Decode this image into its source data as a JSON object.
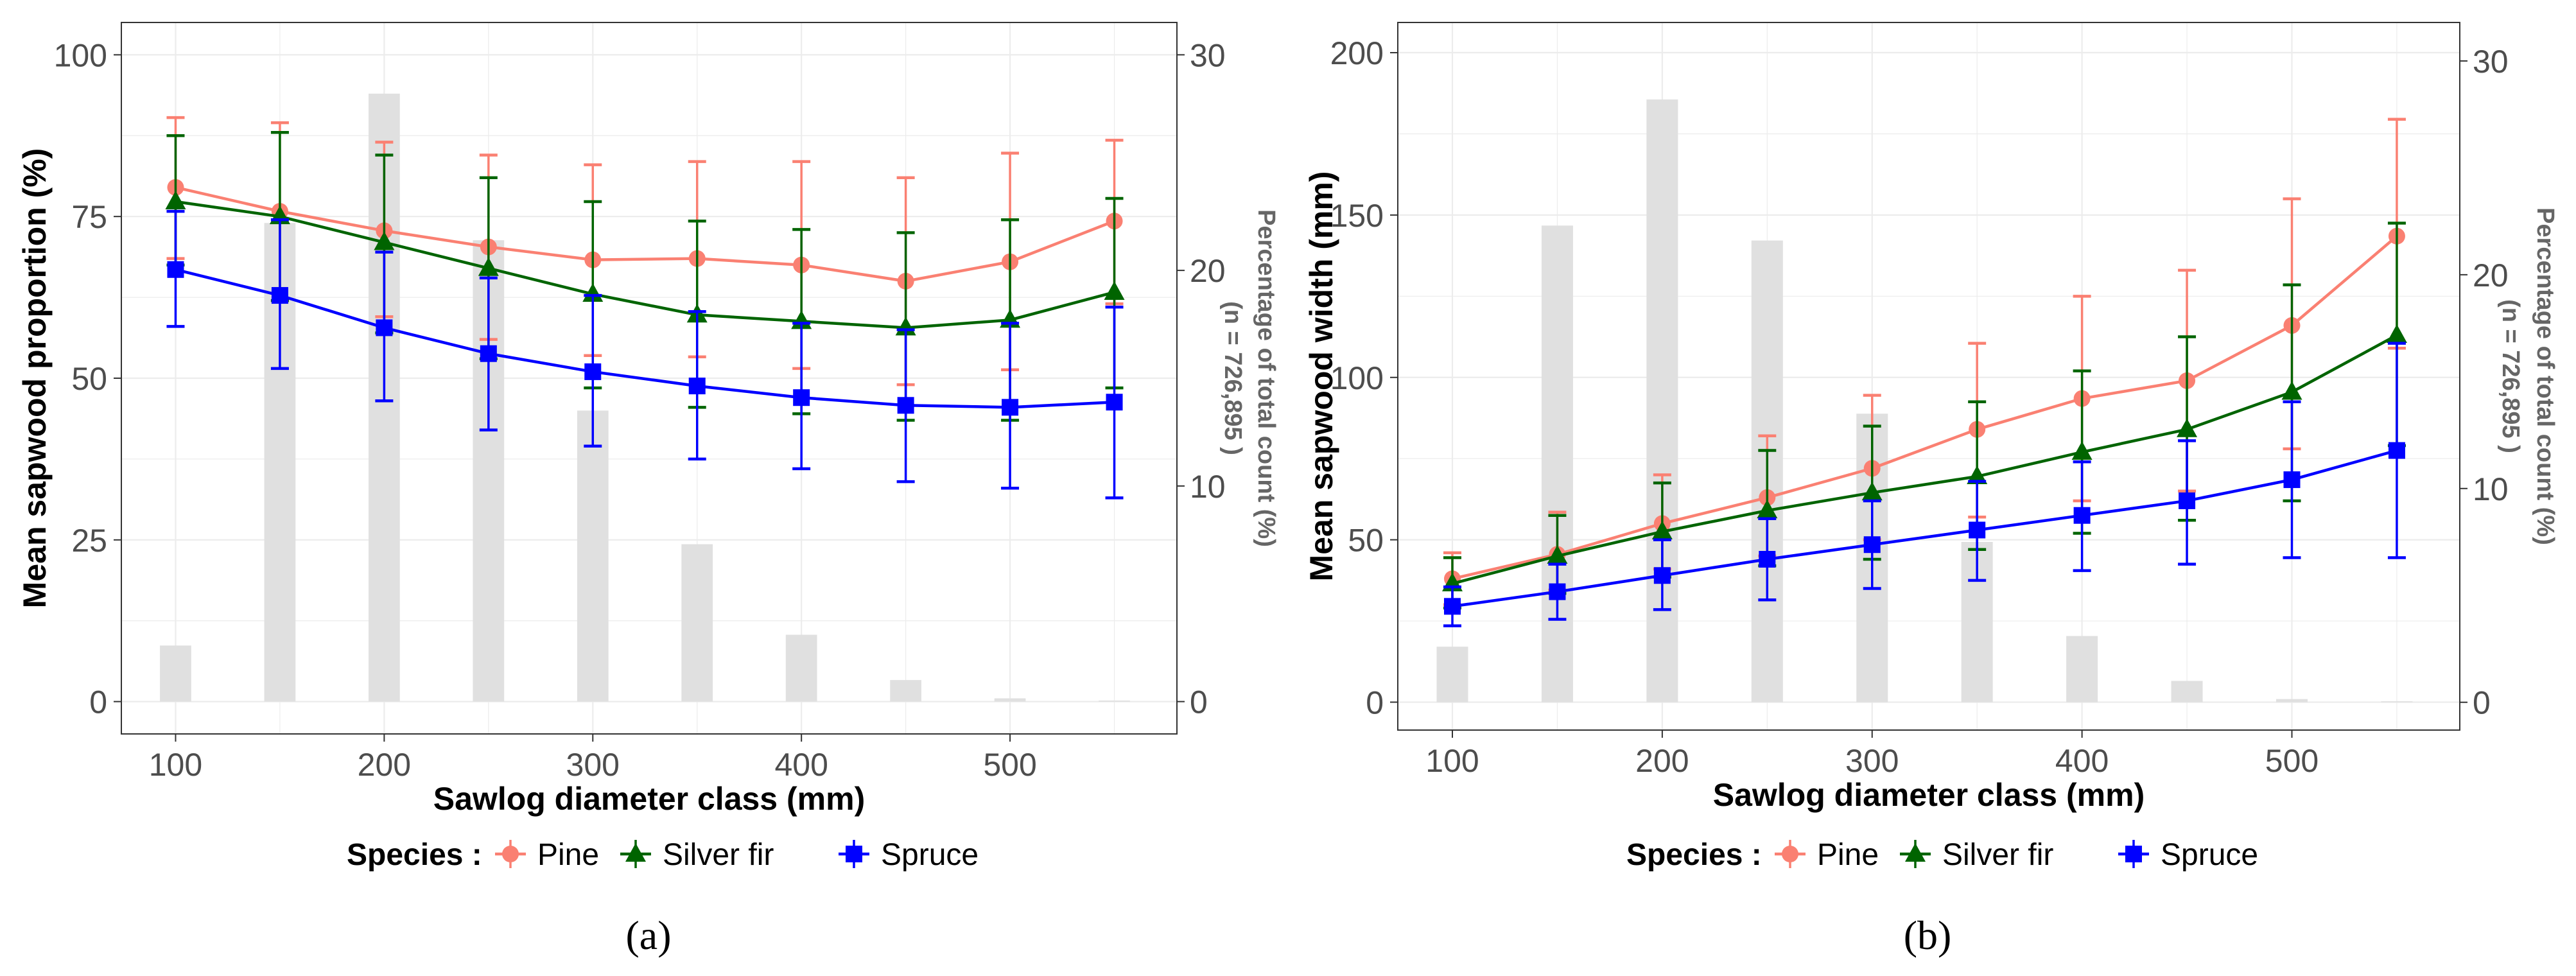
{
  "colors": {
    "pine": "#fa8072",
    "silver_fir": "#006400",
    "spruce": "#0000ff",
    "bars": "#e0e0e0",
    "grid": "#ececec",
    "axis_text_left": "#4d4d4d",
    "axis_text_right": "#666666"
  },
  "legend": {
    "title": "Species :",
    "items": [
      {
        "label": "Pine",
        "color": "#fa8072",
        "marker": "circle"
      },
      {
        "label": "Silver fir",
        "color": "#006400",
        "marker": "triangle"
      },
      {
        "label": "Spruce",
        "color": "#0000ff",
        "marker": "square"
      }
    ]
  },
  "chart_data": [
    {
      "panel_label": "(a)",
      "type": "line",
      "xlabel": "Sawlog diameter class (mm)",
      "ylabel": "Mean sapwood proportion (%)",
      "y2label": "Percentage of total count (%)",
      "y2sublabel": "(n = 726,895 )",
      "x": [
        100,
        150,
        200,
        250,
        300,
        350,
        400,
        450,
        500,
        550
      ],
      "xlim": [
        74,
        580
      ],
      "ylim": [
        -5,
        105
      ],
      "y2lim": [
        -1.5,
        31.5
      ],
      "xticks": [
        100,
        200,
        300,
        400,
        500
      ],
      "yticks": [
        0,
        25,
        50,
        75,
        100
      ],
      "y2ticks": [
        0,
        10,
        20,
        30
      ],
      "bars": [
        2.6,
        22.2,
        28.2,
        21.4,
        13.5,
        7.3,
        3.1,
        1.0,
        0.15,
        0.05
      ],
      "series": [
        {
          "name": "Pine",
          "values": [
            79.5,
            75.8,
            72.8,
            70.3,
            68.3,
            68.5,
            67.5,
            65.0,
            68.0,
            74.3
          ],
          "err_low": [
            68.5,
            62.0,
            59.5,
            56.0,
            53.5,
            53.3,
            51.5,
            49.0,
            51.3,
            61.5
          ],
          "err_high": [
            90.3,
            89.5,
            86.5,
            84.5,
            83.0,
            83.5,
            83.5,
            81.0,
            84.8,
            86.8
          ]
        },
        {
          "name": "Silver fir",
          "values": [
            77.3,
            75.0,
            71.0,
            67.0,
            63.0,
            59.8,
            58.8,
            57.8,
            59.0,
            63.3
          ],
          "err_low": [
            67.5,
            62.0,
            57.0,
            53.0,
            48.5,
            45.5,
            44.5,
            43.5,
            43.5,
            48.5
          ],
          "err_high": [
            87.5,
            88.0,
            84.5,
            81.0,
            77.3,
            74.3,
            73.0,
            72.5,
            74.5,
            77.8
          ]
        },
        {
          "name": "Spruce",
          "values": [
            66.8,
            62.8,
            57.8,
            53.8,
            51.0,
            48.8,
            47.0,
            45.8,
            45.5,
            46.3
          ],
          "err_low": [
            58.0,
            51.5,
            46.5,
            42.0,
            39.5,
            37.5,
            36.0,
            34.0,
            33.0,
            31.5
          ],
          "err_high": [
            75.8,
            74.5,
            69.5,
            65.5,
            62.8,
            60.3,
            58.5,
            57.5,
            58.5,
            61.0
          ]
        }
      ]
    },
    {
      "panel_label": "(b)",
      "type": "line",
      "xlabel": "Sawlog diameter class (mm)",
      "ylabel": "Mean sapwood width (mm)",
      "y2label": "Percentage of total count (%)",
      "y2sublabel": "(n = 726,895 )",
      "x": [
        100,
        150,
        200,
        250,
        300,
        350,
        400,
        450,
        500,
        550
      ],
      "xlim": [
        74,
        580
      ],
      "ylim": [
        -8.6,
        209.3
      ],
      "y2lim": [
        -1.3,
        31.8
      ],
      "xticks": [
        100,
        200,
        300,
        400,
        500
      ],
      "yticks": [
        0,
        50,
        100,
        150,
        200
      ],
      "y2ticks": [
        0,
        10,
        20,
        30
      ],
      "bars": [
        2.6,
        22.3,
        28.2,
        21.6,
        13.5,
        7.5,
        3.1,
        1.0,
        0.15,
        0.05
      ],
      "series": [
        {
          "name": "Pine",
          "values": [
            38.0,
            45.5,
            55.0,
            63.0,
            72.0,
            84.0,
            93.5,
            99.0,
            116.0,
            143.5
          ],
          "err_low": [
            30.0,
            34.5,
            41.0,
            45.0,
            50.0,
            57.0,
            62.0,
            65.0,
            78.0,
            109.0
          ],
          "err_high": [
            46.0,
            58.5,
            70.0,
            82.0,
            94.5,
            110.5,
            125.0,
            133.0,
            155.0,
            179.5
          ]
        },
        {
          "name": "Silver fir",
          "values": [
            36.5,
            45.0,
            52.5,
            59.0,
            64.5,
            69.5,
            77.0,
            84.0,
            95.5,
            113.0
          ],
          "err_low": [
            29.0,
            33.5,
            38.5,
            42.0,
            44.0,
            47.0,
            52.0,
            56.0,
            62.0,
            79.0
          ],
          "err_high": [
            44.5,
            57.5,
            67.5,
            77.5,
            85.0,
            92.5,
            102.0,
            112.5,
            128.5,
            147.5
          ]
        },
        {
          "name": "Spruce",
          "values": [
            29.5,
            34.0,
            39.0,
            44.0,
            48.5,
            53.0,
            57.5,
            62.0,
            68.5,
            77.5
          ],
          "err_low": [
            23.5,
            25.5,
            28.5,
            31.5,
            35.0,
            37.5,
            40.5,
            42.5,
            44.5,
            44.5
          ],
          "err_high": [
            35.5,
            42.5,
            50.0,
            56.5,
            62.0,
            68.0,
            74.0,
            80.5,
            92.5,
            110.5
          ]
        }
      ]
    }
  ]
}
